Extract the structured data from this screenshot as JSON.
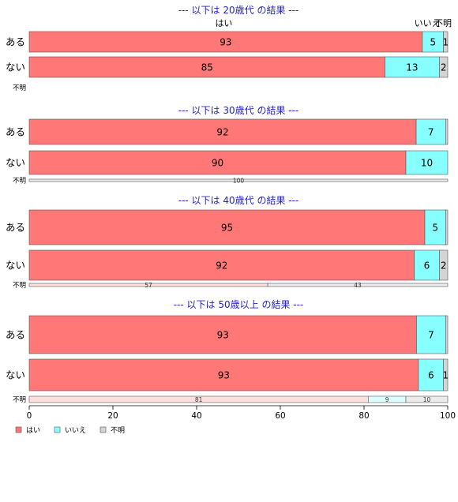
{
  "chart_data": {
    "type": "bar",
    "orientation": "horizontal",
    "stacked": "percent",
    "legend": {
      "position": "bottom-left",
      "entries": [
        {
          "name": "はい",
          "color": "#ff7777"
        },
        {
          "name": "いいえ",
          "color": "#88ffff"
        },
        {
          "name": "不明",
          "color": "#d4d4d4"
        }
      ]
    },
    "column_headers": [
      "はい",
      "いいえ",
      "不明"
    ],
    "xlim": [
      0,
      100
    ],
    "xticks": [
      "0",
      "20",
      "40",
      "60",
      "80",
      "100"
    ],
    "colors": {
      "yes": "#ff7777",
      "no": "#88ffff",
      "unknown": "#d4d4d4",
      "title": "#2222cc"
    },
    "panels": [
      {
        "title": "--- 以下は 20歳代 の結果 ---",
        "rows": [
          {
            "label": "ある",
            "values": [
              93,
              5,
              1
            ],
            "labels": [
              "93",
              "5",
              "1"
            ]
          },
          {
            "label": "ない",
            "values": [
              85,
              13,
              2
            ],
            "labels": [
              "85",
              "13",
              "2"
            ]
          },
          {
            "label": "不明",
            "values": [],
            "labels": []
          }
        ]
      },
      {
        "title": "--- 以下は 30歳代 の結果 ---",
        "rows": [
          {
            "label": "ある",
            "values": [
              92,
              7,
              0.5
            ],
            "labels": [
              "92",
              "7",
              ""
            ]
          },
          {
            "label": "ない",
            "values": [
              90,
              10,
              0
            ],
            "labels": [
              "90",
              "10",
              ""
            ]
          },
          {
            "label": "不明",
            "values": [
              0,
              0,
              100
            ],
            "labels": [
              "",
              "",
              "100"
            ]
          }
        ]
      },
      {
        "title": "--- 以下は 40歳代 の結果 ---",
        "rows": [
          {
            "label": "ある",
            "values": [
              95,
              5,
              0.5
            ],
            "labels": [
              "95",
              "5",
              ""
            ]
          },
          {
            "label": "ない",
            "values": [
              92,
              6,
              2
            ],
            "labels": [
              "92",
              "6",
              "2"
            ]
          },
          {
            "label": "不明",
            "values": [
              57,
              0,
              43
            ],
            "labels": [
              "57",
              "",
              "43"
            ]
          }
        ]
      },
      {
        "title": "--- 以下は 50歳以上 の結果 ---",
        "rows": [
          {
            "label": "ある",
            "values": [
              93,
              7,
              0.5
            ],
            "labels": [
              "93",
              "7",
              ""
            ]
          },
          {
            "label": "ない",
            "values": [
              93,
              6,
              1
            ],
            "labels": [
              "93",
              "6",
              "1"
            ]
          },
          {
            "label": "不明",
            "values": [
              81,
              9,
              10
            ],
            "labels": [
              "81",
              "9",
              "10"
            ]
          }
        ]
      }
    ]
  }
}
